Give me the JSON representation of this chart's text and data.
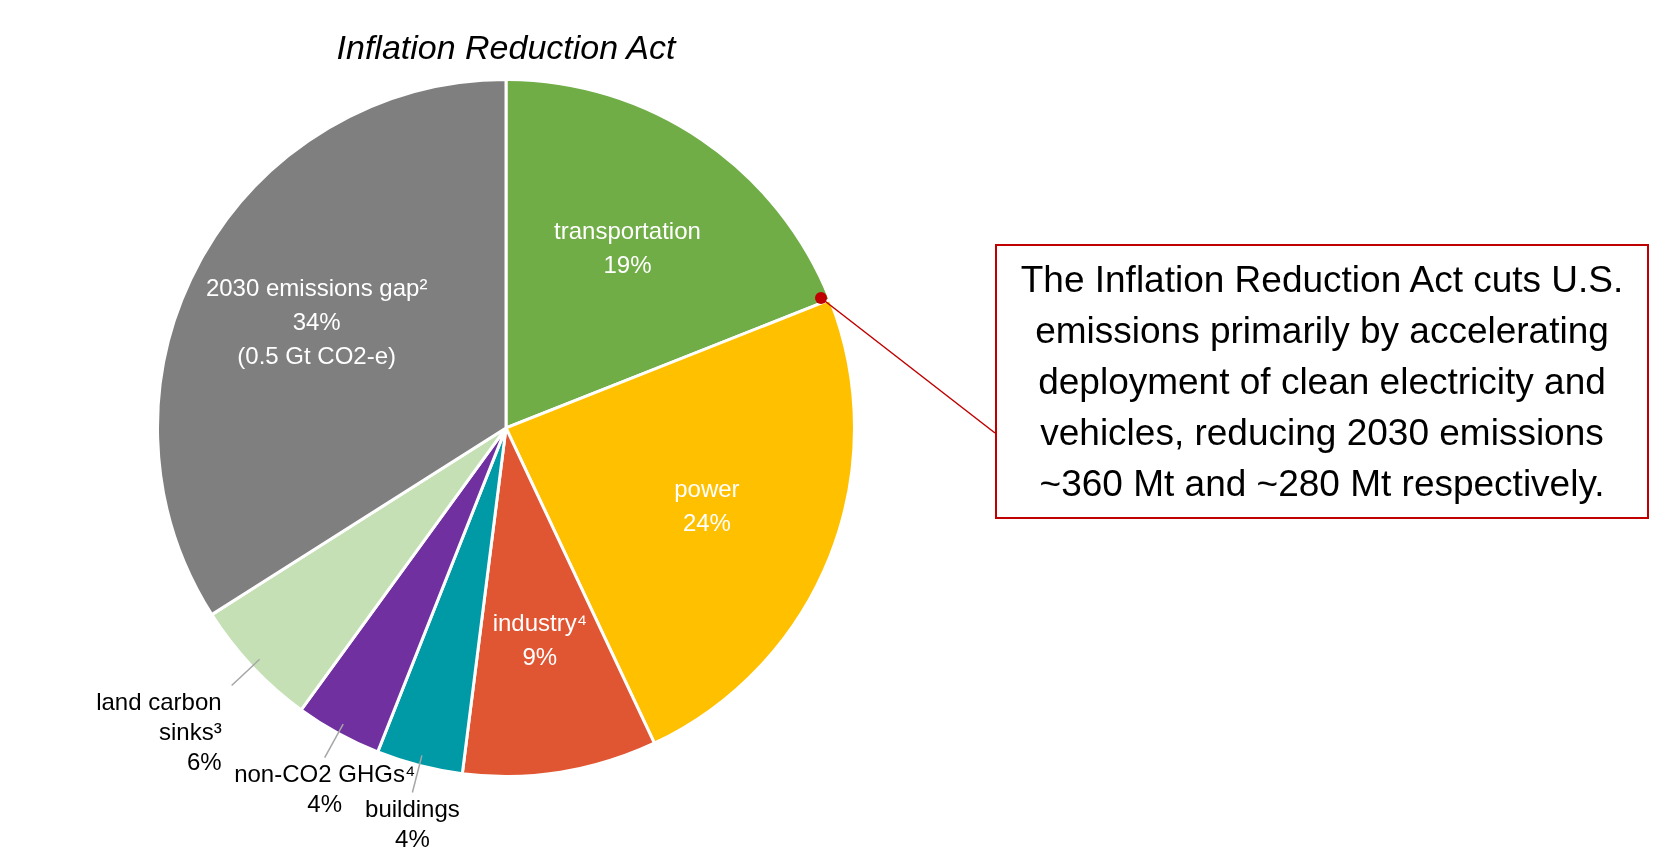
{
  "chart_data": {
    "type": "pie",
    "title": "Inflation Reduction Act",
    "categories": [
      "transportation",
      "power",
      "industry⁴",
      "buildings",
      "non-CO2 GHGs⁴",
      "land carbon sinks³",
      "2030 emissions gap²"
    ],
    "values": [
      19,
      24,
      9,
      4,
      4,
      6,
      34
    ],
    "value_labels": [
      "19%",
      "24%",
      "9%",
      "4%",
      "4%",
      "6%",
      "34%"
    ],
    "colors": [
      "#70ad47",
      "#ffc000",
      "#e05532",
      "#009aa6",
      "#7030a0",
      "#c5e0b4",
      "#7f7f7f"
    ],
    "annotations": [
      {
        "text": "(0.5 Gt CO2-e)",
        "x": "2030 emissions gap²"
      },
      "The Inflation Reduction Act cuts U.S. emissions primarily by accelerating deployment of clean electricity and vehicles, reducing 2030 emissions ~360 Mt and ~280 Mt respectively."
    ]
  }
}
